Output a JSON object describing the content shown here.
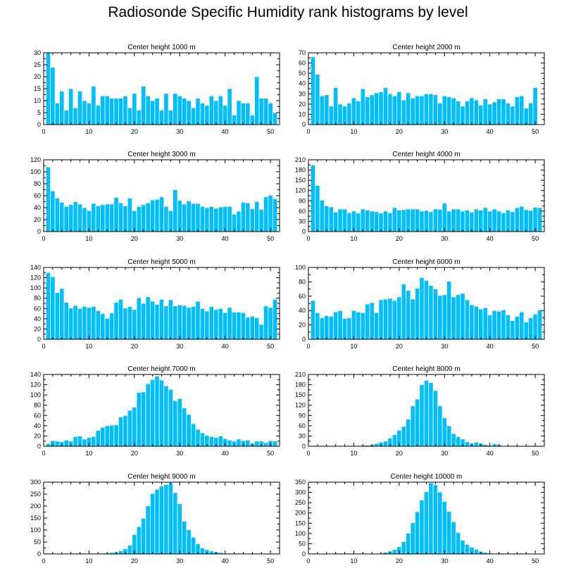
{
  "title": "Radiosonde Specific Humidity rank histograms by level",
  "colors": {
    "bar": "#00bfff",
    "bar_edge": "#ffffff",
    "axis": "#000000"
  },
  "chart_data": [
    {
      "type": "bar",
      "title": "Center height 1000 m",
      "xlim": [
        0,
        52
      ],
      "ylim": [
        0,
        30
      ],
      "yticks": [
        0,
        5,
        10,
        15,
        20,
        25,
        30
      ],
      "xticks": [
        0,
        10,
        20,
        30,
        40,
        50
      ],
      "values": [
        30,
        24,
        9,
        14,
        6,
        15,
        7,
        14,
        10,
        9,
        16,
        8,
        12,
        12,
        11,
        11,
        11,
        12,
        7,
        13,
        6,
        16,
        12,
        10,
        11,
        6,
        13,
        6,
        13,
        12,
        11,
        10,
        7,
        11,
        9,
        8,
        12,
        10,
        12,
        8,
        15,
        4,
        10,
        9,
        9,
        4,
        20,
        11,
        11,
        9,
        5
      ]
    },
    {
      "type": "bar",
      "title": "Center height 2000 m",
      "xlim": [
        0,
        52
      ],
      "ylim": [
        0,
        70
      ],
      "yticks": [
        0,
        10,
        20,
        30,
        40,
        50,
        60,
        70
      ],
      "xticks": [
        0,
        10,
        20,
        30,
        40,
        50
      ],
      "values": [
        66,
        49,
        28,
        29,
        18,
        36,
        20,
        18,
        21,
        26,
        23,
        35,
        27,
        29,
        31,
        32,
        36,
        30,
        28,
        32,
        24,
        31,
        26,
        28,
        28,
        30,
        30,
        29,
        21,
        28,
        27,
        26,
        23,
        18,
        23,
        26,
        24,
        19,
        25,
        20,
        22,
        25,
        25,
        21,
        18,
        27,
        28,
        16,
        21,
        36
      ]
    },
    {
      "type": "bar",
      "title": "Center height 3000 m",
      "xlim": [
        0,
        52
      ],
      "ylim": [
        0,
        120
      ],
      "yticks": [
        0,
        20,
        40,
        60,
        80,
        100,
        120
      ],
      "xticks": [
        0,
        10,
        20,
        30,
        40,
        50
      ],
      "values": [
        108,
        68,
        56,
        49,
        42,
        45,
        50,
        46,
        40,
        35,
        47,
        43,
        45,
        46,
        46,
        57,
        48,
        43,
        56,
        35,
        42,
        45,
        48,
        53,
        54,
        58,
        42,
        35,
        70,
        52,
        46,
        51,
        47,
        47,
        42,
        40,
        42,
        39,
        41,
        42,
        42,
        29,
        34,
        49,
        48,
        38,
        50,
        37,
        58,
        61,
        55
      ]
    },
    {
      "type": "bar",
      "title": "Center height 4000 m",
      "xlim": [
        0,
        52
      ],
      "ylim": [
        0,
        210
      ],
      "yticks": [
        0,
        30,
        60,
        90,
        120,
        150,
        180,
        210
      ],
      "xticks": [
        0,
        10,
        20,
        30,
        40,
        50
      ],
      "values": [
        195,
        135,
        92,
        75,
        72,
        57,
        66,
        66,
        55,
        60,
        54,
        66,
        63,
        60,
        58,
        54,
        60,
        55,
        70,
        63,
        64,
        66,
        66,
        66,
        60,
        62,
        58,
        66,
        65,
        83,
        60,
        66,
        66,
        60,
        63,
        57,
        66,
        63,
        70,
        60,
        66,
        60,
        55,
        63,
        58,
        70,
        74,
        64,
        62,
        71,
        70
      ]
    },
    {
      "type": "bar",
      "title": "Center height 5000 m",
      "xlim": [
        0,
        52
      ],
      "ylim": [
        0,
        140
      ],
      "yticks": [
        0,
        20,
        40,
        60,
        80,
        100,
        120,
        140
      ],
      "xticks": [
        0,
        10,
        20,
        30,
        40,
        50
      ],
      "values": [
        130,
        122,
        91,
        99,
        72,
        61,
        66,
        60,
        64,
        62,
        64,
        56,
        50,
        41,
        51,
        72,
        78,
        61,
        64,
        58,
        81,
        70,
        83,
        74,
        68,
        78,
        65,
        77,
        65,
        67,
        66,
        62,
        64,
        74,
        60,
        55,
        64,
        58,
        60,
        52,
        62,
        53,
        53,
        52,
        43,
        45,
        42,
        29,
        65,
        62,
        78
      ]
    },
    {
      "type": "bar",
      "title": "Center height 6000 m",
      "xlim": [
        0,
        52
      ],
      "ylim": [
        0,
        100
      ],
      "yticks": [
        0,
        20,
        40,
        60,
        80,
        100
      ],
      "xticks": [
        0,
        10,
        20,
        30,
        40,
        50
      ],
      "values": [
        54,
        37,
        30,
        33,
        32,
        38,
        40,
        29,
        30,
        40,
        38,
        37,
        49,
        51,
        37,
        55,
        56,
        57,
        54,
        59,
        77,
        68,
        56,
        71,
        86,
        82,
        75,
        70,
        61,
        62,
        81,
        59,
        62,
        64,
        55,
        48,
        46,
        42,
        44,
        34,
        40,
        39,
        41,
        34,
        26,
        32,
        38,
        24,
        30,
        35,
        41
      ]
    },
    {
      "type": "bar",
      "title": "Center height 7000 m",
      "xlim": [
        0,
        52
      ],
      "ylim": [
        0,
        140
      ],
      "yticks": [
        0,
        20,
        40,
        60,
        80,
        100,
        120,
        140
      ],
      "xticks": [
        0,
        10,
        20,
        30,
        40,
        50
      ],
      "values": [
        5,
        11,
        10,
        9,
        12,
        10,
        19,
        20,
        14,
        17,
        19,
        31,
        37,
        40,
        41,
        42,
        57,
        60,
        70,
        76,
        105,
        106,
        122,
        130,
        137,
        129,
        118,
        111,
        89,
        93,
        75,
        62,
        44,
        33,
        26,
        21,
        19,
        17,
        20,
        15,
        12,
        10,
        14,
        11,
        12,
        6,
        10,
        10,
        7,
        11,
        10
      ]
    },
    {
      "type": "bar",
      "title": "Center height 8000 m",
      "xlim": [
        0,
        52
      ],
      "ylim": [
        0,
        210
      ],
      "yticks": [
        0,
        30,
        60,
        90,
        120,
        150,
        180,
        210
      ],
      "xticks": [
        0,
        10,
        20,
        30,
        40,
        50
      ],
      "values": [
        0,
        0,
        0,
        0,
        0,
        0,
        0,
        0,
        2,
        0,
        0,
        3,
        3,
        5,
        8,
        12,
        15,
        24,
        34,
        47,
        58,
        79,
        118,
        138,
        180,
        193,
        186,
        163,
        118,
        83,
        60,
        37,
        28,
        21,
        13,
        9,
        12,
        9,
        5,
        3,
        7,
        5,
        2,
        2,
        2,
        1,
        1,
        0,
        0,
        0,
        0
      ]
    },
    {
      "type": "bar",
      "title": "Center height 9000 m",
      "xlim": [
        0,
        52
      ],
      "ylim": [
        0,
        300
      ],
      "yticks": [
        0,
        50,
        100,
        150,
        200,
        250,
        300
      ],
      "xticks": [
        0,
        10,
        20,
        30,
        40,
        50
      ],
      "values": [
        0,
        0,
        0,
        0,
        0,
        0,
        0,
        0,
        0,
        2,
        2,
        2,
        3,
        4,
        6,
        8,
        13,
        22,
        37,
        81,
        114,
        149,
        201,
        253,
        270,
        284,
        290,
        298,
        256,
        210,
        137,
        101,
        70,
        43,
        25,
        18,
        12,
        9,
        6,
        3,
        3,
        2,
        1,
        1,
        1,
        0,
        0,
        0,
        0,
        0,
        0
      ]
    },
    {
      "type": "bar",
      "title": "Center height 10000 m",
      "xlim": [
        0,
        52
      ],
      "ylim": [
        0,
        350
      ],
      "yticks": [
        0,
        50,
        100,
        150,
        200,
        250,
        300,
        350
      ],
      "xticks": [
        0,
        10,
        20,
        30,
        40,
        50
      ],
      "values": [
        0,
        0,
        0,
        0,
        0,
        0,
        0,
        0,
        0,
        0,
        0,
        0,
        0,
        0,
        2,
        4,
        8,
        14,
        22,
        35,
        60,
        101,
        152,
        206,
        263,
        303,
        347,
        337,
        302,
        256,
        207,
        157,
        104,
        67,
        46,
        33,
        22,
        13,
        7,
        4,
        3,
        4,
        4,
        3,
        3,
        1,
        1,
        0,
        0,
        0,
        0
      ]
    }
  ]
}
